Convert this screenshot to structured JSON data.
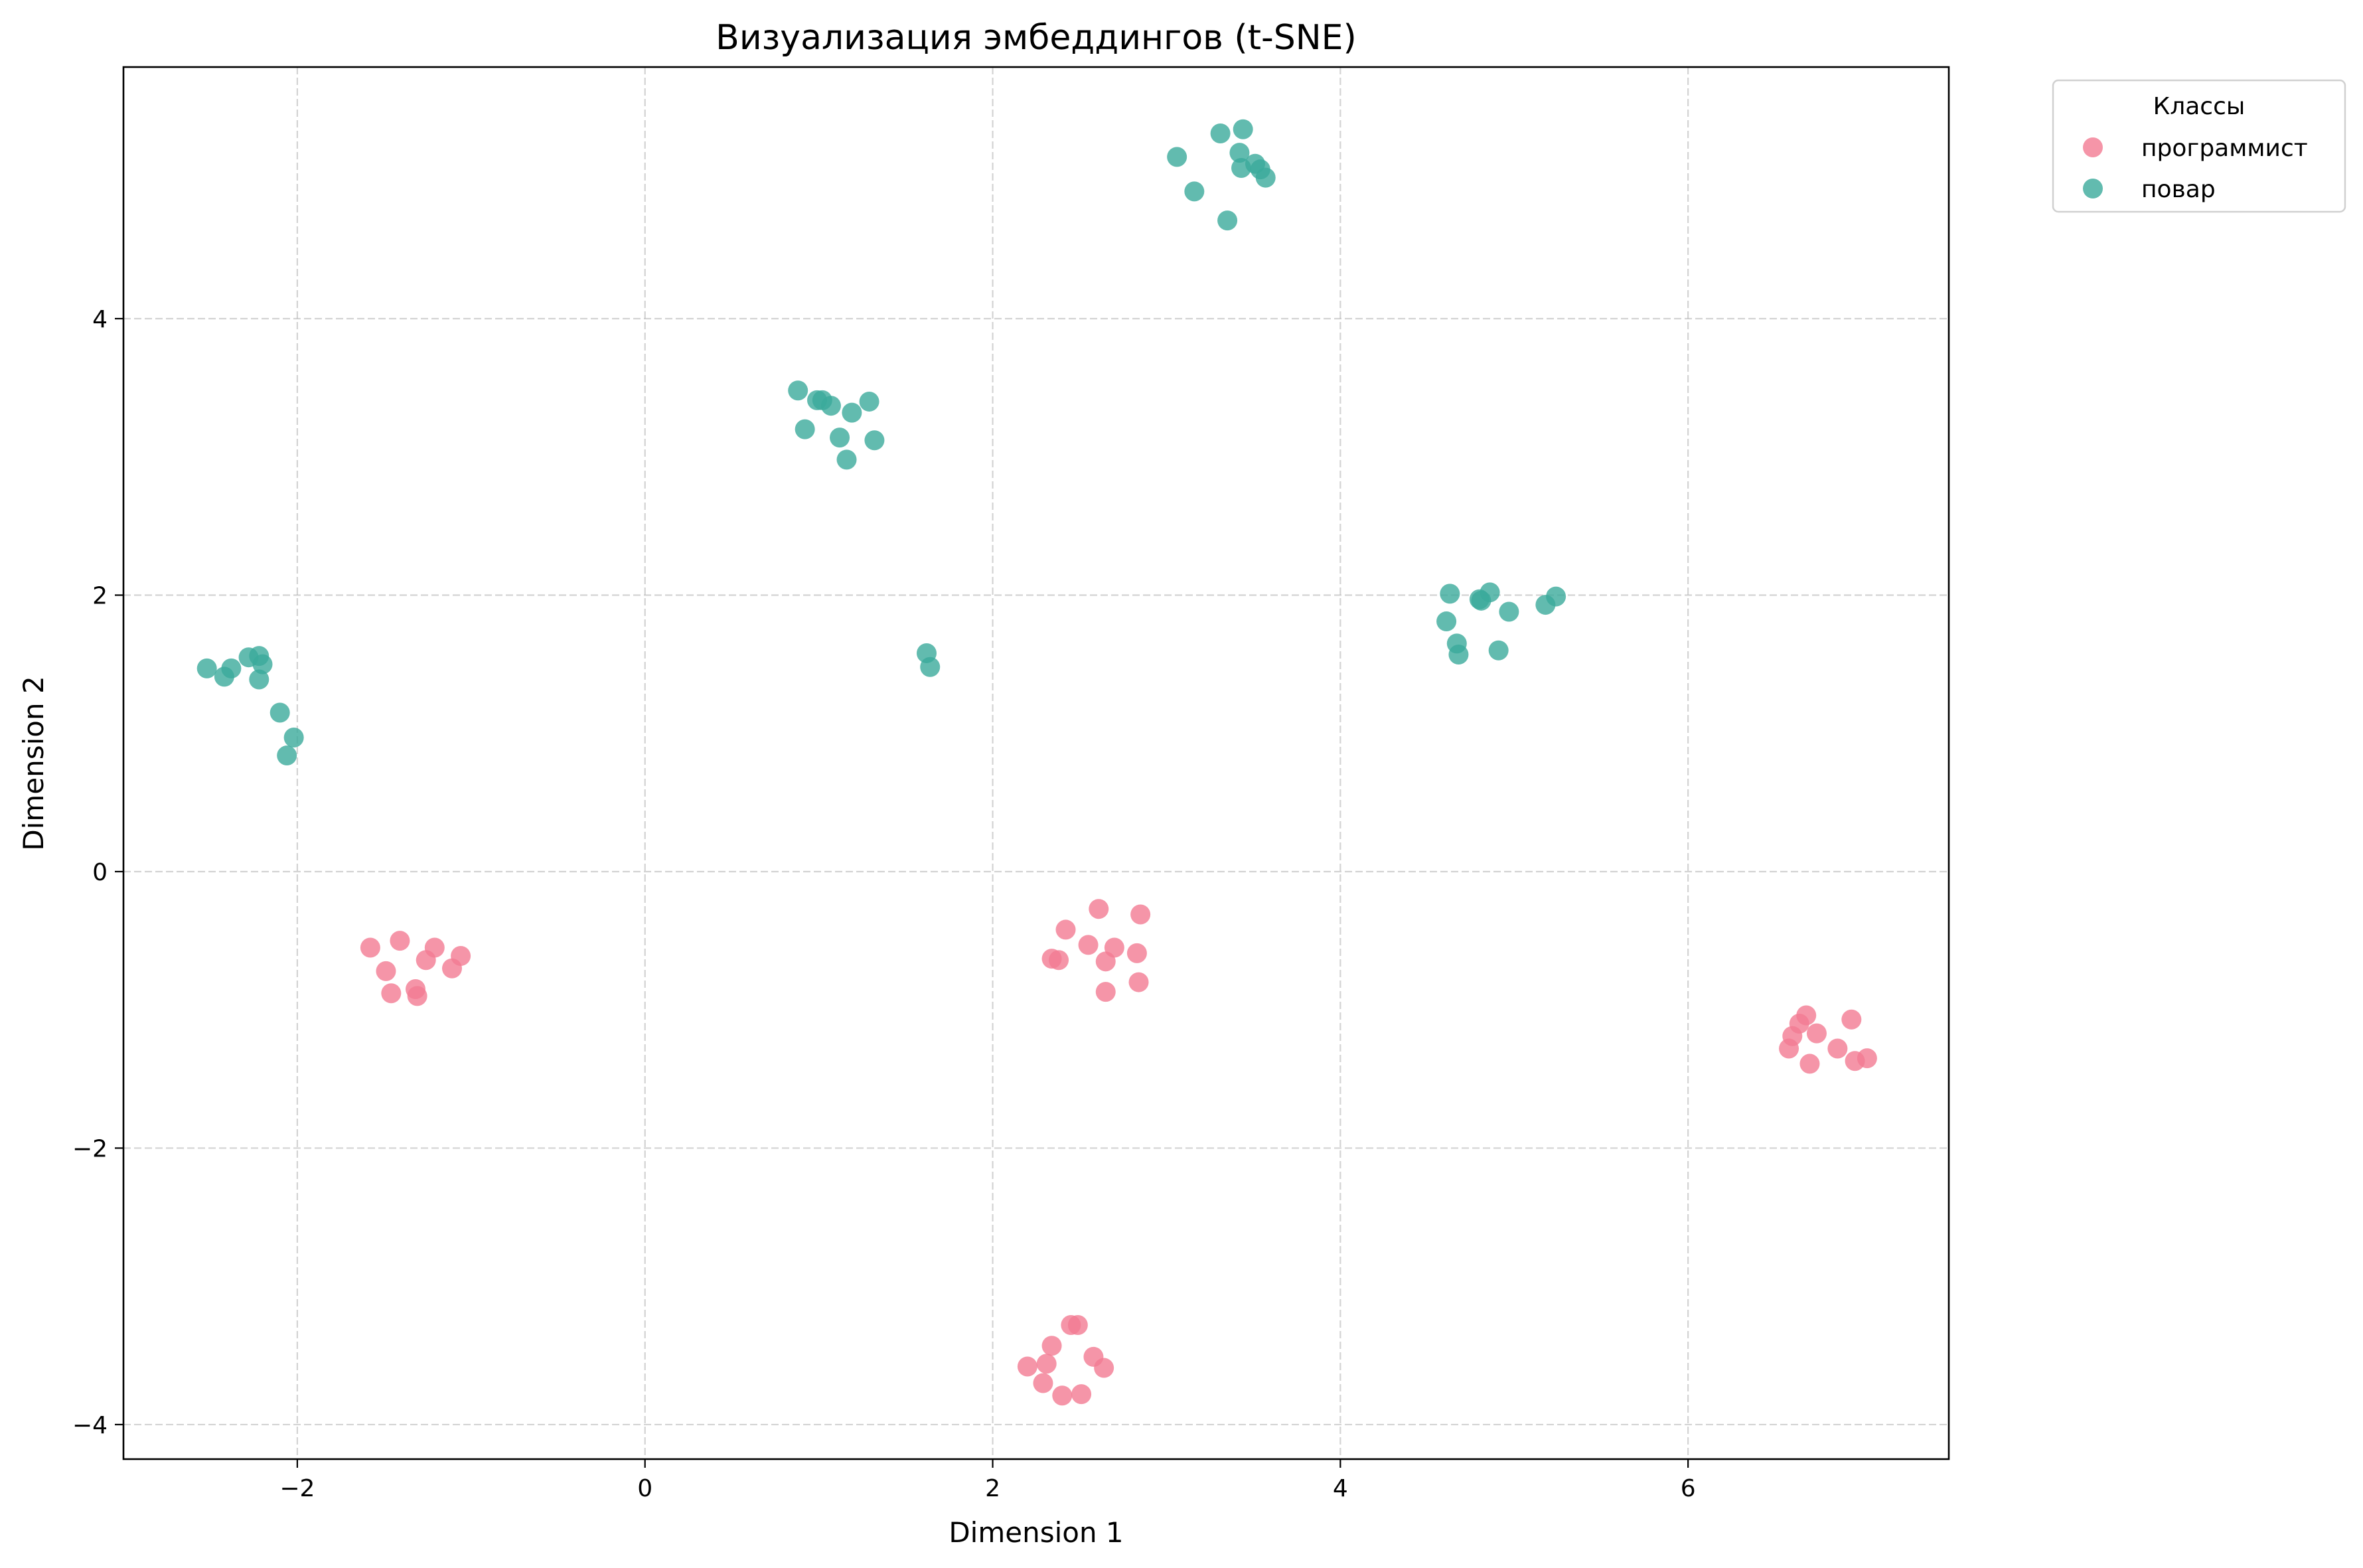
{
  "chart_data": {
    "type": "scatter",
    "title": "Визуализация эмбеддингов (t-SNE)",
    "xlabel": "Dimension 1",
    "ylabel": "Dimension 2",
    "xlim": [
      -3.0,
      7.5
    ],
    "ylim": [
      -4.25,
      5.82
    ],
    "xticks": [
      -2,
      0,
      2,
      4,
      6
    ],
    "yticks": [
      -4,
      -2,
      0,
      2,
      4
    ],
    "xtick_labels": [
      "−2",
      "0",
      "2",
      "4",
      "6"
    ],
    "ytick_labels": [
      "−4",
      "−2",
      "0",
      "2",
      "4"
    ],
    "grid": true,
    "legend": {
      "title": "Классы",
      "placement": "outside-top-right"
    },
    "series": [
      {
        "name": "программист",
        "color": "#f37b92",
        "points": [
          [
            -1.58,
            -0.55
          ],
          [
            -1.41,
            -0.5
          ],
          [
            -1.49,
            -0.72
          ],
          [
            -1.21,
            -0.55
          ],
          [
            -1.26,
            -0.64
          ],
          [
            -1.06,
            -0.61
          ],
          [
            -1.11,
            -0.7
          ],
          [
            -1.32,
            -0.85
          ],
          [
            -1.46,
            -0.88
          ],
          [
            -1.31,
            -0.9
          ],
          [
            2.34,
            -0.63
          ],
          [
            2.38,
            -0.64
          ],
          [
            2.42,
            -0.42
          ],
          [
            2.55,
            -0.53
          ],
          [
            2.61,
            -0.27
          ],
          [
            2.65,
            -0.65
          ],
          [
            2.7,
            -0.55
          ],
          [
            2.65,
            -0.87
          ],
          [
            2.83,
            -0.59
          ],
          [
            2.84,
            -0.8
          ],
          [
            2.85,
            -0.31
          ],
          [
            2.2,
            -3.58
          ],
          [
            2.29,
            -3.7
          ],
          [
            2.31,
            -3.56
          ],
          [
            2.34,
            -3.43
          ],
          [
            2.4,
            -3.79
          ],
          [
            2.45,
            -3.28
          ],
          [
            2.49,
            -3.28
          ],
          [
            2.51,
            -3.78
          ],
          [
            2.58,
            -3.51
          ],
          [
            2.64,
            -3.59
          ],
          [
            6.58,
            -1.28
          ],
          [
            6.6,
            -1.19
          ],
          [
            6.64,
            -1.1
          ],
          [
            6.68,
            -1.04
          ],
          [
            6.7,
            -1.39
          ],
          [
            6.74,
            -1.17
          ],
          [
            6.86,
            -1.28
          ],
          [
            6.94,
            -1.07
          ],
          [
            6.96,
            -1.37
          ],
          [
            7.03,
            -1.35
          ]
        ]
      },
      {
        "name": "повар",
        "color": "#3baa9b",
        "points": [
          [
            -2.52,
            1.47
          ],
          [
            -2.42,
            1.41
          ],
          [
            -2.38,
            1.47
          ],
          [
            -2.28,
            1.55
          ],
          [
            -2.22,
            1.56
          ],
          [
            -2.2,
            1.5
          ],
          [
            -2.22,
            1.39
          ],
          [
            -2.1,
            1.15
          ],
          [
            -2.06,
            0.84
          ],
          [
            -2.02,
            0.97
          ],
          [
            0.88,
            3.48
          ],
          [
            0.92,
            3.2
          ],
          [
            0.99,
            3.41
          ],
          [
            1.02,
            3.41
          ],
          [
            1.07,
            3.37
          ],
          [
            1.12,
            3.14
          ],
          [
            1.16,
            2.98
          ],
          [
            1.19,
            3.32
          ],
          [
            1.29,
            3.4
          ],
          [
            1.32,
            3.12
          ],
          [
            1.62,
            1.58
          ],
          [
            1.64,
            1.48
          ],
          [
            3.06,
            5.17
          ],
          [
            3.16,
            4.92
          ],
          [
            3.31,
            5.34
          ],
          [
            3.35,
            4.71
          ],
          [
            3.42,
            5.2
          ],
          [
            3.43,
            5.09
          ],
          [
            3.44,
            5.37
          ],
          [
            3.51,
            5.12
          ],
          [
            3.54,
            5.08
          ],
          [
            3.57,
            5.02
          ],
          [
            4.61,
            1.81
          ],
          [
            4.63,
            2.01
          ],
          [
            4.67,
            1.65
          ],
          [
            4.68,
            1.57
          ],
          [
            4.8,
            1.97
          ],
          [
            4.81,
            1.96
          ],
          [
            4.86,
            2.02
          ],
          [
            4.91,
            1.6
          ],
          [
            4.97,
            1.88
          ],
          [
            5.18,
            1.93
          ],
          [
            5.24,
            1.99
          ]
        ]
      }
    ]
  }
}
